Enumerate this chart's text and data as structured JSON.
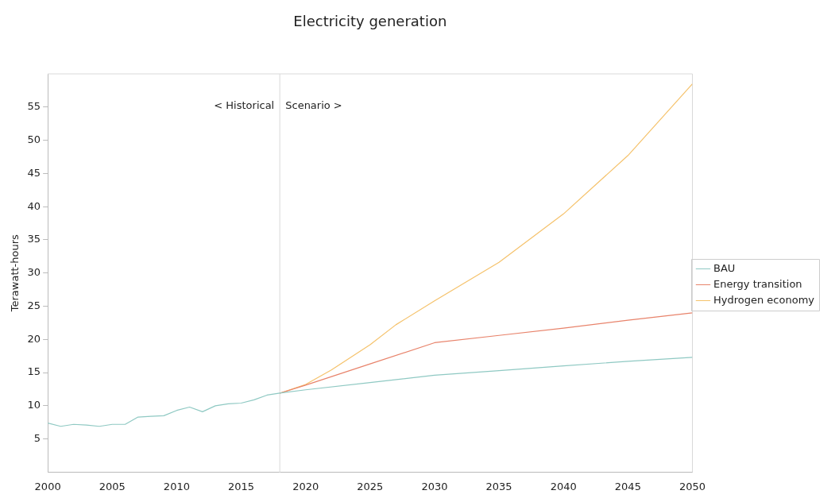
{
  "chart_data": {
    "type": "line",
    "title": "Electricity generation",
    "ylabel": "Terawatt-hours",
    "xlim": [
      2000,
      2050
    ],
    "xticks": [
      2000,
      2005,
      2010,
      2015,
      2020,
      2025,
      2030,
      2035,
      2040,
      2045,
      2050
    ],
    "ylim": [
      0,
      60
    ],
    "yticks": [
      5,
      10,
      15,
      20,
      25,
      30,
      35,
      40,
      45,
      50,
      55
    ],
    "grid": false,
    "legend": "right",
    "marker": "none",
    "line_style": "solid",
    "ref_lines": [
      {
        "axis": "x",
        "value": 2018,
        "color": "#e6e6e6"
      }
    ],
    "annotations": [
      "< Historical",
      "Scenario >"
    ],
    "series": [
      {
        "name": "BAU",
        "color": "#8fc9c3",
        "x": [
          2000,
          2001,
          2002,
          2003,
          2004,
          2005,
          2006,
          2007,
          2008,
          2009,
          2010,
          2011,
          2012,
          2013,
          2014,
          2015,
          2016,
          2017,
          2018,
          2020,
          2025,
          2030,
          2035,
          2040,
          2045,
          2050
        ],
        "values": [
          7.4,
          6.9,
          7.2,
          7.1,
          6.9,
          7.2,
          7.2,
          8.3,
          8.4,
          8.5,
          9.3,
          9.8,
          9.1,
          10.0,
          10.3,
          10.4,
          10.9,
          11.6,
          11.9,
          12.4,
          13.5,
          14.6,
          15.3,
          16.0,
          16.7,
          17.3
        ]
      },
      {
        "name": "Energy transition",
        "color": "#e8836b",
        "x": [
          2018,
          2020,
          2025,
          2030,
          2035,
          2040,
          2045,
          2050
        ],
        "values": [
          11.9,
          13.1,
          16.3,
          19.5,
          20.6,
          21.7,
          22.9,
          24.0
        ]
      },
      {
        "name": "Hydrogen economy",
        "color": "#f5c26b",
        "x": [
          2018,
          2020,
          2022,
          2025,
          2027,
          2030,
          2035,
          2040,
          2045,
          2050
        ],
        "values": [
          11.9,
          13.2,
          15.4,
          19.2,
          22.2,
          25.8,
          31.6,
          38.9,
          47.7,
          58.5
        ]
      }
    ]
  }
}
